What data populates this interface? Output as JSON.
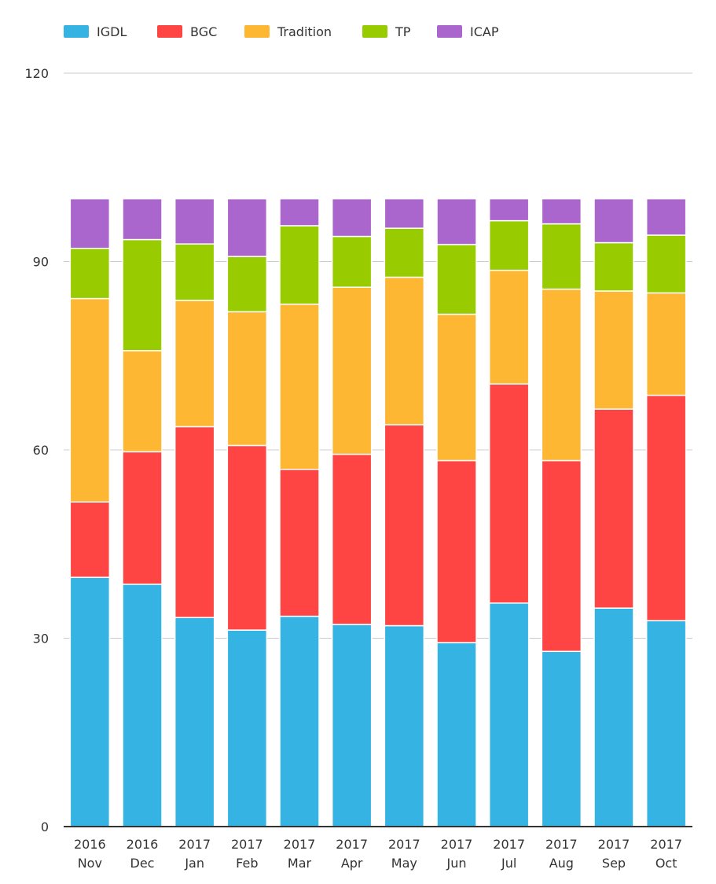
{
  "chart_data": {
    "type": "bar",
    "stacked": true,
    "title": "",
    "xlabel": "",
    "ylabel": "",
    "ylim": [
      0,
      120
    ],
    "y_ticks": [
      0,
      30,
      60,
      90,
      120
    ],
    "grid": true,
    "legend_position": "top-left",
    "categories": [
      [
        "2016",
        "Nov"
      ],
      [
        "2016",
        "Dec"
      ],
      [
        "2017",
        "Jan"
      ],
      [
        "2017",
        "Feb"
      ],
      [
        "2017",
        "Mar"
      ],
      [
        "2017",
        "Apr"
      ],
      [
        "2017",
        "May"
      ],
      [
        "2017",
        "Jun"
      ],
      [
        "2017",
        "Jul"
      ],
      [
        "2017",
        "Aug"
      ],
      [
        "2017",
        "Sep"
      ],
      [
        "2017",
        "Oct"
      ]
    ],
    "series": [
      {
        "name": "IGDL",
        "color": "#35b4e4",
        "values": [
          39.7,
          38.6,
          33.3,
          31.3,
          33.5,
          32.2,
          32.0,
          29.3,
          35.6,
          27.9,
          34.8,
          32.8
        ]
      },
      {
        "name": "BGC",
        "color": "#ff4444",
        "values": [
          12.0,
          21.1,
          30.4,
          29.4,
          23.4,
          27.1,
          32.0,
          29.0,
          34.9,
          30.4,
          31.7,
          35.9
        ]
      },
      {
        "name": "Tradition",
        "color": "#feb733",
        "values": [
          32.4,
          16.1,
          20.1,
          21.3,
          26.3,
          26.6,
          23.5,
          23.3,
          18.1,
          27.3,
          18.8,
          16.3
        ]
      },
      {
        "name": "TP",
        "color": "#99cc00",
        "values": [
          8.0,
          17.7,
          9.0,
          8.8,
          12.5,
          8.1,
          7.8,
          11.1,
          7.9,
          10.4,
          7.7,
          9.2
        ]
      },
      {
        "name": "ICAP",
        "color": "#aa66cc",
        "values": [
          7.9,
          6.5,
          7.2,
          9.2,
          4.3,
          6.0,
          4.7,
          7.3,
          3.5,
          4.0,
          7.0,
          5.8
        ]
      }
    ]
  }
}
